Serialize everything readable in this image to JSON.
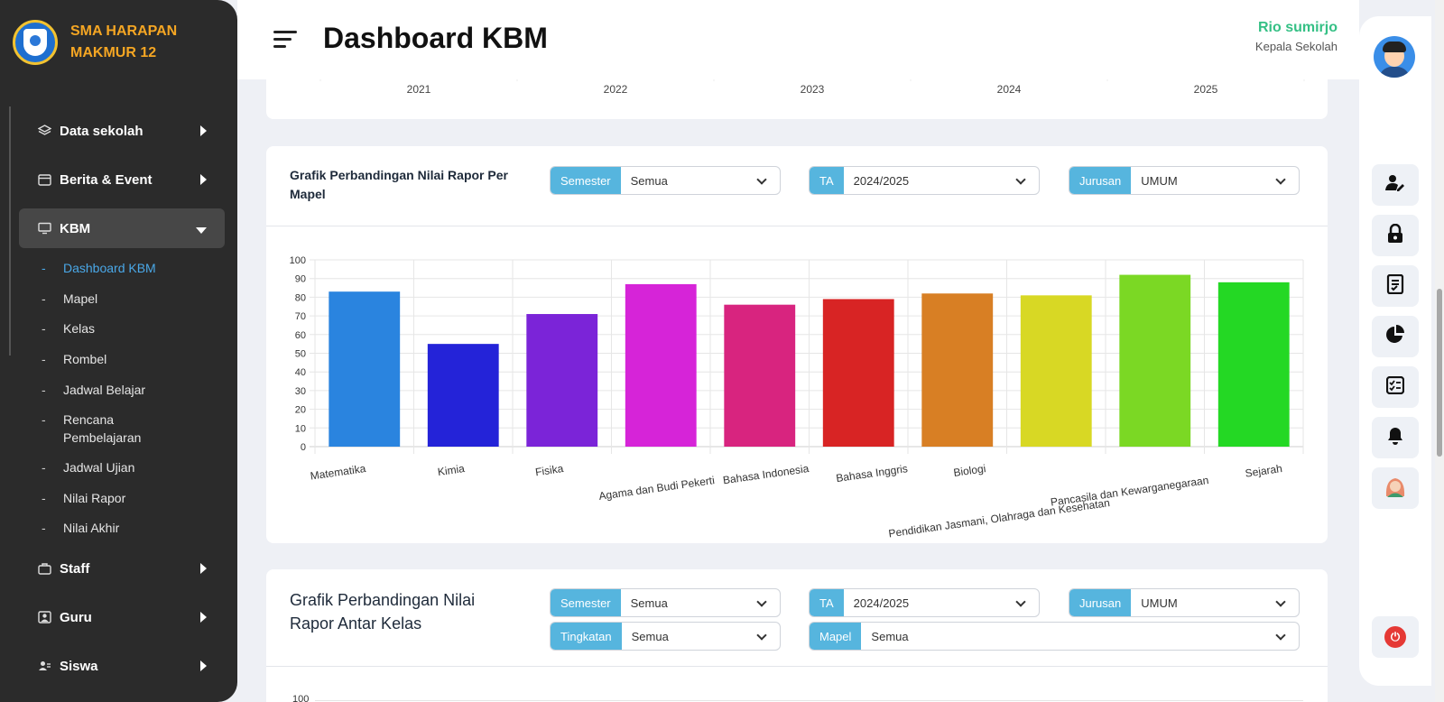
{
  "sidebar": {
    "school_name": "SMA HARAPAN MAKMUR 12",
    "nav": [
      {
        "label": "Data sekolah",
        "icon": "layers-icon"
      },
      {
        "label": "Berita & Event",
        "icon": "calendar-icon"
      },
      {
        "label": "KBM",
        "icon": "monitor-icon"
      },
      {
        "label": "Staff",
        "icon": "briefcase-icon"
      },
      {
        "label": "Guru",
        "icon": "user-square-icon"
      },
      {
        "label": "Siswa",
        "icon": "users-icon"
      }
    ],
    "kbm_items": [
      "Dashboard KBM",
      "Mapel",
      "Kelas",
      "Rombel",
      "Jadwal Belajar",
      "Rencana Pembelajaran",
      "Jadwal Ujian",
      "Nilai Rapor",
      "Nilai Akhir"
    ],
    "bullet": "-"
  },
  "header": {
    "title": "Dashboard KBM",
    "user_name": "Rio sumirjo",
    "user_role": "Kepala Sekolah"
  },
  "top_chart": {
    "years": [
      "2021",
      "2022",
      "2023",
      "2024",
      "2025"
    ]
  },
  "card_mapel": {
    "title": "Grafik Perbandingan Nilai Rapor Per Mapel",
    "filters": {
      "semester": {
        "label": "Semester",
        "value": "Semua"
      },
      "ta": {
        "label": "TA",
        "value": "2024/2025"
      },
      "jurusan": {
        "label": "Jurusan",
        "value": "UMUM"
      }
    }
  },
  "card_kelas": {
    "title": "Grafik Perbandingan Nilai Rapor Antar Kelas",
    "filters": {
      "semester": {
        "label": "Semester",
        "value": "Semua"
      },
      "ta": {
        "label": "TA",
        "value": "2024/2025"
      },
      "jurusan": {
        "label": "Jurusan",
        "value": "UMUM"
      },
      "tingkatan": {
        "label": "Tingkatan",
        "value": "Semua"
      },
      "mapel": {
        "label": "Mapel",
        "value": "Semua"
      }
    },
    "y_top_tick": "100"
  },
  "chart_data": {
    "type": "bar",
    "categories": [
      "Matematika",
      "Kimia",
      "Fisika",
      "Agama dan Budi Pekerti",
      "Bahasa Indonesia",
      "Bahasa Inggris",
      "Biologi",
      "Pendidikan Jasmani, Olahraga dan Kesehatan",
      "Pancasila dan Kewarganegaraan",
      "Sejarah"
    ],
    "values": [
      83,
      55,
      71,
      87,
      76,
      79,
      82,
      81,
      92,
      88
    ],
    "colors": [
      "#2a84df",
      "#2423d8",
      "#7b24d8",
      "#d624d8",
      "#d8247f",
      "#d82424",
      "#d87f24",
      "#d8d824",
      "#7bd824",
      "#24d824"
    ],
    "yticks": [
      "0",
      "10",
      "20",
      "30",
      "40",
      "50",
      "60",
      "70",
      "80",
      "90",
      "100"
    ],
    "ylim": [
      0,
      100
    ],
    "grid": true
  },
  "rail": {
    "icons": [
      "user-edit-icon",
      "lock-icon",
      "report-icon",
      "pie-chart-icon",
      "checklist-icon",
      "bell-icon",
      "hijab-avatar-icon"
    ],
    "power": "⏻"
  }
}
